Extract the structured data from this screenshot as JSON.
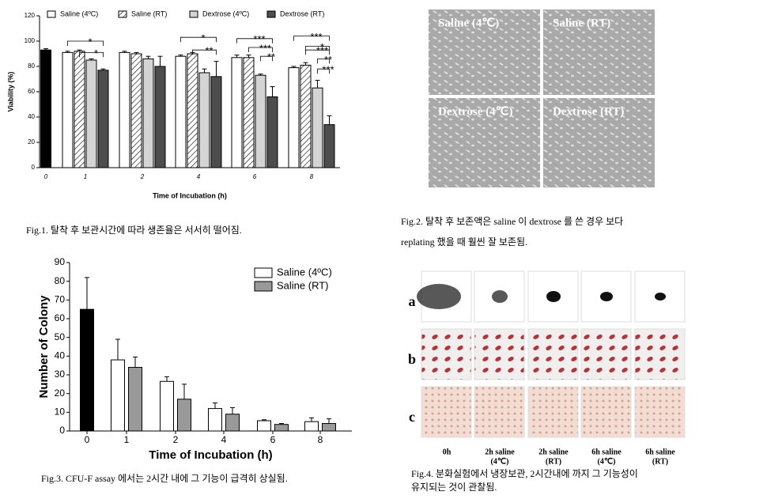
{
  "chart_data": [
    {
      "type": "bar",
      "y_label": "Viability (%)",
      "x_label": "Time of Incubation (h)",
      "legend": "top",
      "categories": [
        "0",
        "1",
        "2",
        "4",
        "6",
        "8"
      ],
      "control": {
        "value": 93,
        "error": 1,
        "color": "#000000"
      },
      "series": [
        {
          "name": "Saline (4ºC)",
          "color": "#ffffff",
          "values": [
            null,
            91,
            91,
            88,
            87,
            79
          ],
          "errors": [
            null,
            1,
            1,
            1,
            2,
            1
          ]
        },
        {
          "name": "Saline (RT)",
          "color": "#ffffff",
          "hatch": true,
          "values": [
            null,
            92,
            90,
            90,
            87,
            81
          ],
          "errors": [
            null,
            1,
            1,
            1,
            2,
            2
          ]
        },
        {
          "name": "Dextrose (4ºC)",
          "color": "#d4d4d4",
          "values": [
            null,
            85,
            86,
            75,
            73,
            63
          ],
          "errors": [
            null,
            1,
            2,
            3,
            1,
            6
          ]
        },
        {
          "name": "Dextrose (RT)",
          "color": "#4d4d4d",
          "values": [
            null,
            77,
            80,
            72,
            56,
            34
          ],
          "errors": [
            null,
            1,
            8,
            12,
            8,
            7
          ]
        }
      ],
      "ylim": [
        0,
        120
      ],
      "yticks": [
        0,
        20,
        40,
        60,
        80,
        100,
        120
      ],
      "grid": false,
      "annotations": [
        "*",
        "*",
        "*",
        "**",
        "***",
        "***",
        "**",
        "***",
        "*",
        "***",
        "**",
        "***"
      ]
    },
    {
      "type": "bar",
      "y_label": "Number of Colony",
      "x_label": "Time of Incubation (h)",
      "legend": "upper right",
      "categories": [
        "0",
        "1",
        "2",
        "4",
        "6",
        "8"
      ],
      "control": {
        "value": 65,
        "error": 17,
        "color": "#000000"
      },
      "series": [
        {
          "name": "Saline (4ºC)",
          "color": "#ffffff",
          "values": [
            null,
            38,
            26.5,
            12,
            5.5,
            5
          ],
          "errors": [
            null,
            11,
            2.5,
            3,
            0.5,
            2
          ]
        },
        {
          "name": "Saline (RT)",
          "color": "#999999",
          "values": [
            null,
            34,
            17,
            9,
            3.5,
            4
          ],
          "errors": [
            null,
            5.5,
            8,
            3.5,
            0.5,
            2.5
          ]
        }
      ],
      "ylim": [
        0,
        90
      ],
      "yticks": [
        0,
        10,
        20,
        30,
        40,
        50,
        60,
        70,
        80,
        90
      ],
      "grid": false,
      "annotations": []
    }
  ],
  "captions": {
    "fig1": "Fig.1. 탈착 후 보관시간에 따라 생존율은 서서히 떨어짐.",
    "fig2": [
      "Fig.2. 탈착 후 보존액은 saline 이 dextrose 를 쓴 경우 보다",
      "replating 했을 때 훨씬 잘 보존됨."
    ],
    "fig3": "Fig.3. CFU-F assay 에서는 2시간 내에 그 기능이 급격히 상실됨.",
    "fig4": [
      "Fig.4. 분화실험에서 냉장보관, 2시간내에 까지 그 기능성이",
      "유지되는 것이 관찰됨."
    ]
  },
  "fig2_labels": [
    "Saline (4℃)",
    "Saline (RT)",
    "Dextrose (4℃)",
    "Dextrose (RT)"
  ],
  "fig4": {
    "rows": [
      "a",
      "b",
      "c"
    ],
    "columns": [
      [
        "0h"
      ],
      [
        "2h saline",
        "(4℃)"
      ],
      [
        "2h saline",
        "(RT)"
      ],
      [
        "6h saline",
        "(4℃)"
      ],
      [
        "6h saline",
        "(RT)"
      ]
    ]
  }
}
